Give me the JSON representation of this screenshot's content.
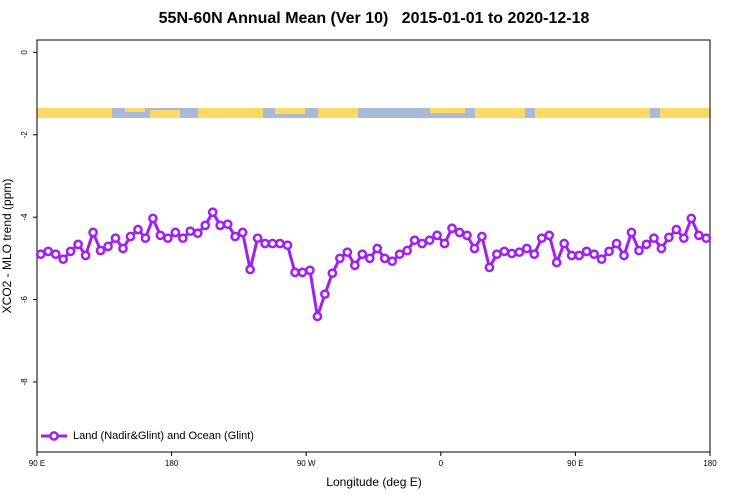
{
  "chart_data": {
    "type": "line",
    "title": "55N-60N Annual Mean (Ver 10)   2015-01-01 to 2020-12-18",
    "x_label": "Longitude (deg E)",
    "y_label": "XCO2 - MLO trend (ppm)",
    "xlim": [
      90,
      540
    ],
    "xticks": [
      {
        "value": 90,
        "label": "90 E"
      },
      180,
      {
        "value": 270,
        "label": "90 W"
      },
      {
        "value": 360,
        "label": "0"
      },
      {
        "value": 450,
        "label": "90 E"
      },
      {
        "value": 540,
        "label": "180"
      }
    ],
    "ylim": [
      -9.7,
      0.3
    ],
    "yticks": [
      0,
      -2,
      -4,
      -6,
      -8
    ],
    "legend": "bottom-left",
    "x": [
      92.5,
      97.5,
      102.5,
      107.5,
      112.5,
      117.5,
      122.5,
      127.5,
      132.5,
      137.5,
      142.5,
      147.5,
      152.5,
      157.5,
      162.5,
      167.5,
      172.5,
      177.5,
      182.5,
      187.5,
      192.5,
      197.5,
      202.5,
      207.5,
      212.5,
      217.5,
      222.5,
      227.5,
      232.5,
      237.5,
      242.5,
      247.5,
      252.5,
      257.5,
      262.5,
      267.5,
      272.5,
      277.5,
      282.5,
      287.5,
      292.5,
      297.5,
      302.5,
      307.5,
      312.5,
      317.5,
      322.5,
      327.5,
      332.5,
      337.5,
      342.5,
      347.5,
      352.5,
      357.5,
      362.5,
      367.5,
      372.5,
      377.5,
      382.5,
      387.5,
      392.5,
      397.5,
      402.5,
      407.5,
      412.5,
      417.5,
      422.5,
      427.5,
      432.5,
      437.5,
      442.5,
      447.5,
      452.5,
      457.5,
      462.5,
      467.5,
      472.5,
      477.5,
      482.5,
      487.5,
      492.5,
      497.5,
      502.5,
      507.5,
      512.5,
      517.5,
      522.5,
      527.5,
      532.5,
      537.5
    ],
    "series": [
      {
        "name": "Land (Nadir&Glint) and Ocean (Glint)",
        "color": "#a020f0",
        "values": [
          -4.9,
          -4.83,
          -4.9,
          -5.02,
          -4.83,
          -4.66,
          -4.93,
          -4.37,
          -4.81,
          -4.71,
          -4.51,
          -4.76,
          -4.47,
          -4.3,
          -4.51,
          -4.03,
          -4.44,
          -4.51,
          -4.37,
          -4.51,
          -4.34,
          -4.39,
          -4.2,
          -3.88,
          -4.2,
          -4.17,
          -4.47,
          -4.37,
          -5.27,
          -4.51,
          -4.64,
          -4.64,
          -4.64,
          -4.68,
          -5.34,
          -5.34,
          -5.29,
          -6.41,
          -5.87,
          -5.36,
          -5.0,
          -4.85,
          -5.17,
          -4.9,
          -5.0,
          -4.76,
          -5.0,
          -5.07,
          -4.9,
          -4.81,
          -4.56,
          -4.64,
          -4.56,
          -4.44,
          -4.64,
          -4.27,
          -4.37,
          -4.44,
          -4.76,
          -4.47,
          -5.22,
          -4.9,
          -4.83,
          -4.88,
          -4.85,
          -4.76,
          -4.9,
          -4.51,
          -4.44,
          -5.1,
          -4.64,
          -4.93,
          -4.93,
          -4.83,
          -4.9,
          -5.02,
          -4.83,
          -4.64,
          -4.93,
          -4.37,
          -4.81,
          -4.66,
          -4.51,
          -4.76,
          -4.49,
          -4.3,
          -4.51,
          -4.03,
          -4.44,
          -4.51
        ]
      }
    ]
  }
}
